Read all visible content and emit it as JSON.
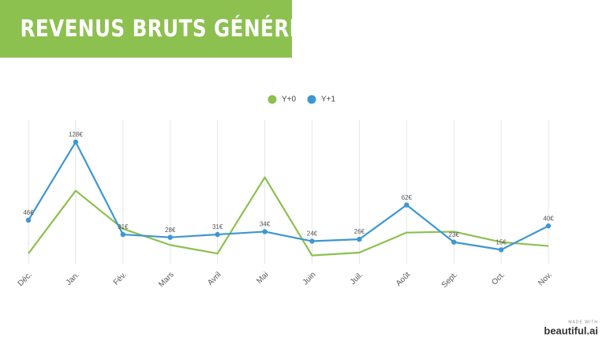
{
  "chart_data": {
    "type": "line",
    "title": "REVENUS BRUTS GÉNÉRÉS",
    "categories": [
      "Déc.",
      "Jan.",
      "Fév.",
      "Mars",
      "Avril",
      "Mai",
      "Juin",
      "Juil.",
      "Août",
      "Sept.",
      "Oct.",
      "Nov."
    ],
    "series": [
      {
        "name": "Y+0",
        "color": "#8cc04f",
        "markers": false,
        "values": [
          11,
          77,
          37,
          20,
          11,
          91,
          9,
          12,
          33,
          34,
          23,
          19
        ]
      },
      {
        "name": "Y+1",
        "color": "#3d97d3",
        "markers": true,
        "values": [
          46,
          128,
          31,
          28,
          31,
          34,
          24,
          26,
          62,
          23,
          15,
          40
        ],
        "value_labels": [
          "46€",
          "128€",
          "31€",
          "28€",
          "31€",
          "34€",
          "24€",
          "26€",
          "62€",
          "23€",
          "15€",
          "40€"
        ]
      }
    ],
    "ylim": [
      0,
      140
    ],
    "grid": true,
    "legend": "top"
  },
  "footer": {
    "made_with": "MADE WITH",
    "brand": "beautiful.ai"
  }
}
